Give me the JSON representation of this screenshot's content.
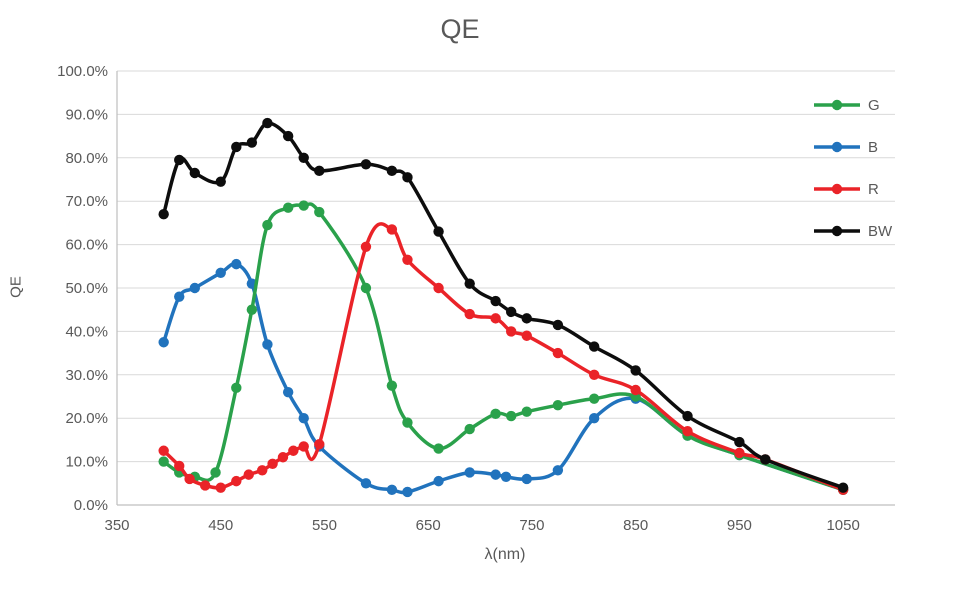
{
  "window": {
    "background": "#ffffff"
  },
  "colors": {
    "text": "#595959",
    "gridline": "#d9d9d9",
    "axis_line": "#bfbfbf",
    "green": "#2aa14b",
    "blue": "#2173bd",
    "red": "#ea2328",
    "black": "#0d0d0d"
  },
  "chart_data": {
    "type": "line",
    "title": "QE",
    "xlabel": "λ(nm)",
    "ylabel": "QE",
    "grid": "horizontal",
    "legend_position": "inside-top-right",
    "marker": "circle",
    "line_style": "smooth",
    "x_axis": {
      "min": 350,
      "max": 1100,
      "tick_interval": 100,
      "tick_labels": [
        "350",
        "450",
        "550",
        "650",
        "750",
        "850",
        "950",
        "1050"
      ]
    },
    "y_axis": {
      "min": 0,
      "max": 100,
      "tick_interval": 10,
      "unit": "%",
      "tick_labels": [
        "0.0%",
        "10.0%",
        "20.0%",
        "30.0%",
        "40.0%",
        "50.0%",
        "60.0%",
        "70.0%",
        "80.0%",
        "90.0%",
        "100.0%"
      ]
    },
    "series": [
      {
        "name": "G",
        "color": "#2aa14b",
        "points": [
          [
            395,
            10
          ],
          [
            410,
            7.5
          ],
          [
            425,
            6.5
          ],
          [
            445,
            7.5
          ],
          [
            465,
            27
          ],
          [
            480,
            45
          ],
          [
            495,
            64.5
          ],
          [
            515,
            68.5
          ],
          [
            530,
            69
          ],
          [
            545,
            67.5
          ],
          [
            590,
            50
          ],
          [
            615,
            27.5
          ],
          [
            630,
            19
          ],
          [
            660,
            13
          ],
          [
            690,
            17.5
          ],
          [
            715,
            21
          ],
          [
            730,
            20.5
          ],
          [
            745,
            21.5
          ],
          [
            775,
            23
          ],
          [
            810,
            24.5
          ],
          [
            850,
            25
          ],
          [
            900,
            16
          ],
          [
            950,
            11.5
          ],
          [
            1050,
            3.5
          ]
        ]
      },
      {
        "name": "B",
        "color": "#2173bd",
        "points": [
          [
            395,
            37.5
          ],
          [
            410,
            48
          ],
          [
            425,
            50
          ],
          [
            450,
            53.5
          ],
          [
            465,
            55.5
          ],
          [
            480,
            51
          ],
          [
            495,
            37
          ],
          [
            515,
            26
          ],
          [
            530,
            20
          ],
          [
            545,
            13.5
          ],
          [
            590,
            5
          ],
          [
            615,
            3.5
          ],
          [
            630,
            3
          ],
          [
            660,
            5.5
          ],
          [
            690,
            7.5
          ],
          [
            715,
            7
          ],
          [
            725,
            6.5
          ],
          [
            745,
            6
          ],
          [
            775,
            8
          ],
          [
            810,
            20
          ],
          [
            850,
            24.5
          ],
          [
            900,
            16
          ],
          [
            950,
            11.5
          ],
          [
            1050,
            3.5
          ]
        ]
      },
      {
        "name": "R",
        "color": "#ea2328",
        "points": [
          [
            395,
            12.5
          ],
          [
            410,
            9
          ],
          [
            420,
            6
          ],
          [
            435,
            4.5
          ],
          [
            450,
            4
          ],
          [
            465,
            5.5
          ],
          [
            477,
            7
          ],
          [
            490,
            8
          ],
          [
            500,
            9.5
          ],
          [
            510,
            11
          ],
          [
            520,
            12.5
          ],
          [
            530,
            13.5
          ],
          [
            545,
            14
          ],
          [
            590,
            59.5
          ],
          [
            615,
            63.5
          ],
          [
            630,
            56.5
          ],
          [
            660,
            50
          ],
          [
            690,
            44
          ],
          [
            715,
            43
          ],
          [
            730,
            40
          ],
          [
            745,
            39
          ],
          [
            775,
            35
          ],
          [
            810,
            30
          ],
          [
            850,
            26.5
          ],
          [
            900,
            17
          ],
          [
            950,
            12
          ],
          [
            975,
            10.5
          ],
          [
            1050,
            3.5
          ]
        ]
      },
      {
        "name": "BW",
        "color": "#0d0d0d",
        "points": [
          [
            395,
            67
          ],
          [
            410,
            79.5
          ],
          [
            425,
            76.5
          ],
          [
            450,
            74.5
          ],
          [
            465,
            82.5
          ],
          [
            480,
            83.5
          ],
          [
            495,
            88
          ],
          [
            515,
            85
          ],
          [
            530,
            80
          ],
          [
            545,
            77
          ],
          [
            590,
            78.5
          ],
          [
            615,
            77
          ],
          [
            630,
            75.5
          ],
          [
            660,
            63
          ],
          [
            690,
            51
          ],
          [
            715,
            47
          ],
          [
            730,
            44.5
          ],
          [
            745,
            43
          ],
          [
            775,
            41.5
          ],
          [
            810,
            36.5
          ],
          [
            850,
            31
          ],
          [
            900,
            20.5
          ],
          [
            950,
            14.5
          ],
          [
            975,
            10.5
          ],
          [
            1050,
            4
          ]
        ]
      }
    ]
  }
}
